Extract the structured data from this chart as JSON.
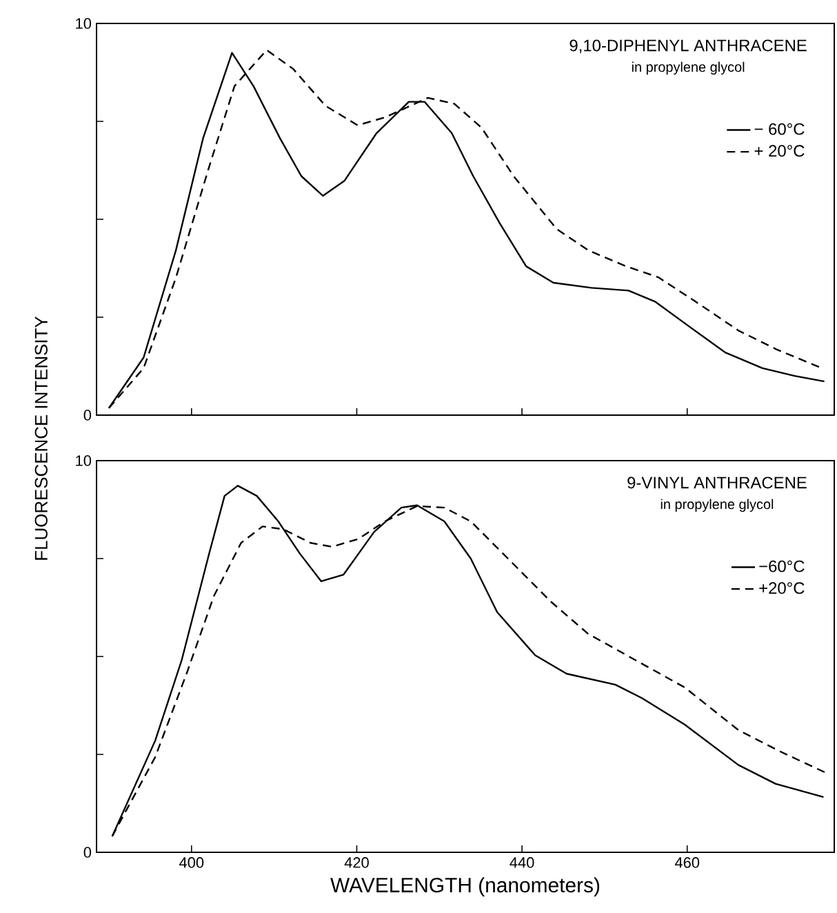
{
  "chart_data": [
    {
      "type": "line",
      "title": "9,10-DIPHENYL ANTHRACENE",
      "subtitle": "in propylene glycol",
      "ylabel": "FLUORESCENCE INTENSITY",
      "legend": "top right",
      "tick_labels": "y",
      "xlim": [
        388.5,
        477.8
      ],
      "ylim": [
        0,
        10
      ],
      "xticks": [
        {
          "value": 400,
          "label": null
        },
        {
          "value": 420,
          "label": null
        },
        {
          "value": 440,
          "label": null
        },
        {
          "value": 460,
          "label": null
        }
      ],
      "yticks": [
        0,
        {
          "value": 2.5,
          "label": null
        },
        {
          "value": 5,
          "label": null
        },
        {
          "value": 7.5,
          "label": null
        },
        10
      ],
      "series": [
        {
          "name": "− 60°C",
          "color": "#000000",
          "line_style": "solid",
          "x": [
            390,
            394.2,
            398.1,
            401.4,
            404.9,
            407.5,
            410.7,
            413.3,
            415.9,
            418.5,
            422.4,
            426.3,
            428.2,
            431.5,
            434.1,
            437.3,
            440.5,
            443.8,
            448.4,
            452.9,
            456.1,
            460,
            464.6,
            469.1,
            473,
            476.6
          ],
          "values": [
            0.18,
            1.47,
            4.2,
            7.07,
            9.25,
            8.4,
            7.07,
            6.1,
            5.6,
            5.98,
            7.2,
            8.0,
            8.0,
            7.2,
            6.1,
            4.9,
            3.8,
            3.38,
            3.25,
            3.18,
            2.9,
            2.3,
            1.6,
            1.2,
            1.0,
            0.86
          ]
        },
        {
          "name": "+ 20°C",
          "color": "#000000",
          "line_style": "dashed",
          "x": [
            390,
            394.2,
            398.1,
            402,
            405.2,
            409.1,
            412.3,
            416.2,
            420.1,
            423.4,
            428.6,
            431.8,
            435.1,
            439,
            444.2,
            448.1,
            452.6,
            456.5,
            461,
            466.2,
            470.8,
            476.3
          ],
          "values": [
            0.18,
            1.2,
            3.5,
            6.25,
            8.4,
            9.32,
            8.84,
            7.9,
            7.4,
            7.6,
            8.1,
            7.95,
            7.34,
            6.1,
            4.75,
            4.2,
            3.8,
            3.52,
            2.9,
            2.16,
            1.68,
            1.2
          ]
        }
      ]
    },
    {
      "type": "line",
      "title": "9-VINYL ANTHRACENE",
      "subtitle": "in propylene glycol",
      "xlabel": "WAVELENGTH (nanometers)",
      "legend": "top right",
      "xlim": [
        388.5,
        477.8
      ],
      "ylim": [
        0,
        10
      ],
      "xticks": [
        400,
        420,
        440,
        460
      ],
      "yticks": [
        0,
        {
          "value": 2.5,
          "label": null
        },
        {
          "value": 5,
          "label": null
        },
        {
          "value": 7.5,
          "label": null
        },
        10
      ],
      "series": [
        {
          "name": "−60°C",
          "color": "#000000",
          "line_style": "solid",
          "x": [
            390.4,
            395.6,
            398.8,
            402.1,
            404,
            405.6,
            407.9,
            410.5,
            413.1,
            415.7,
            418.4,
            422.1,
            425.4,
            427.3,
            430.6,
            433.8,
            437,
            441.6,
            445.4,
            451.3,
            454.5,
            459.7,
            466.2,
            470.7,
            476.5
          ],
          "values": [
            0.41,
            2.85,
            4.9,
            7.6,
            9.1,
            9.36,
            9.1,
            8.45,
            7.63,
            6.92,
            7.09,
            8.18,
            8.8,
            8.86,
            8.45,
            7.5,
            6.13,
            5.03,
            4.56,
            4.28,
            3.94,
            3.26,
            2.23,
            1.75,
            1.41
          ]
        },
        {
          "name": "+20°C",
          "color": "#000000",
          "line_style": "dashed",
          "x": [
            390.4,
            395.6,
            399.5,
            402.7,
            406,
            408.6,
            411.1,
            414.4,
            417,
            420.2,
            423.4,
            427.3,
            430.6,
            433.8,
            438.3,
            443.5,
            448,
            453.2,
            459.7,
            466.2,
            471.3,
            477.1
          ],
          "values": [
            0.41,
            2.43,
            4.62,
            6.54,
            7.9,
            8.32,
            8.25,
            7.9,
            7.8,
            8.0,
            8.45,
            8.84,
            8.8,
            8.45,
            7.5,
            6.4,
            5.58,
            4.97,
            4.21,
            3.12,
            2.57,
            2.0
          ]
        }
      ]
    }
  ]
}
